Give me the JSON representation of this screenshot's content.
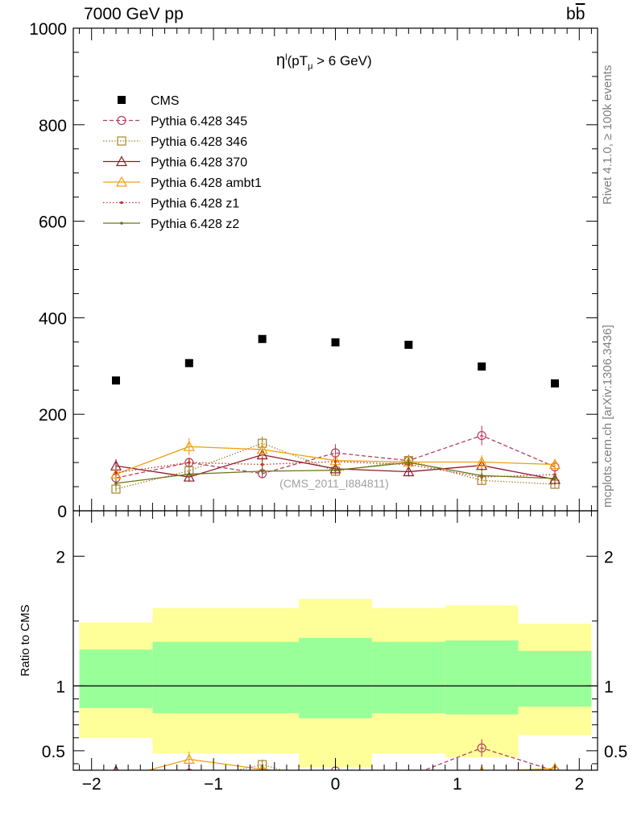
{
  "header": {
    "energy_label": "7000 GeV pp",
    "process_base": "b",
    "process_bar": "b"
  },
  "side_labels": {
    "rivet": "Rivet 4.1.0, ≥ 100k events",
    "source": "mcplots.cern.ch [arXiv:1306.3436]"
  },
  "plot_title": {
    "eta": "η",
    "sup": "l",
    "open": "(pT",
    "sub": "μ",
    "rest": " >  6 GeV)"
  },
  "watermark": "(CMS_2011_I884811)",
  "chart_data": {
    "type": "scatter",
    "xlim": [
      -2.15,
      2.15
    ],
    "xticks": [
      -2,
      -1,
      0,
      1,
      2
    ],
    "xtick_labels": [
      "−2",
      "−1",
      "0",
      "1",
      "2"
    ],
    "main": {
      "ylim": [
        0,
        1000
      ],
      "yticks": [
        0,
        200,
        400,
        600,
        800,
        1000
      ],
      "ytick_labels": [
        "0",
        "200",
        "400",
        "600",
        "800",
        "1000"
      ]
    },
    "ratio": {
      "ylabel": "Ratio to CMS",
      "ylim": [
        0.35,
        2.35
      ],
      "yticks": [
        0.5,
        1,
        2
      ],
      "ytick_labels": [
        "0.5",
        "1",
        "2"
      ]
    },
    "bins": [
      {
        "lo": -2.1,
        "hi": -1.5,
        "inner": [
          0.83,
          1.28
        ],
        "outer": [
          0.6,
          1.49
        ]
      },
      {
        "lo": -1.5,
        "hi": -0.3,
        "inner": [
          0.79,
          1.34
        ],
        "outer": [
          0.48,
          1.6
        ]
      },
      {
        "lo": -0.3,
        "hi": 0.3,
        "inner": [
          0.75,
          1.37
        ],
        "outer": [
          0.37,
          1.67
        ]
      },
      {
        "lo": 0.3,
        "hi": 0.9,
        "inner": [
          0.79,
          1.34
        ],
        "outer": [
          0.48,
          1.6
        ]
      },
      {
        "lo": 0.9,
        "hi": 1.5,
        "inner": [
          0.78,
          1.35
        ],
        "outer": [
          0.45,
          1.62
        ]
      },
      {
        "lo": 1.5,
        "hi": 2.1,
        "inner": [
          0.84,
          1.27
        ],
        "outer": [
          0.62,
          1.48
        ]
      }
    ],
    "cms": {
      "name": "CMS",
      "x": [
        -1.8,
        -1.2,
        -0.6,
        0.0,
        0.6,
        1.2,
        1.8
      ],
      "y": [
        270,
        306,
        356,
        349,
        344,
        299,
        264
      ]
    },
    "series": [
      {
        "name": "Pythia 6.428 345",
        "color": "#b5405e",
        "dash": "5,3",
        "marker": "circle",
        "x": [
          -1.8,
          -1.2,
          -0.6,
          0.0,
          0.6,
          1.2,
          1.8
        ],
        "y": [
          68,
          100,
          77,
          120,
          104,
          156,
          91
        ],
        "err": [
          8,
          10,
          10,
          18,
          12,
          20,
          10
        ]
      },
      {
        "name": "Pythia 6.428 346",
        "color": "#a3852e",
        "dash": "1.5,2",
        "marker": "square",
        "x": [
          -1.8,
          -1.2,
          -0.6,
          0.0,
          0.6,
          1.2,
          1.8
        ],
        "y": [
          45,
          83,
          140,
          82,
          104,
          63,
          55
        ],
        "err": [
          6,
          8,
          14,
          10,
          12,
          8,
          8
        ]
      },
      {
        "name": "Pythia 6.428 370",
        "color": "#8c1c28",
        "dash": "",
        "marker": "triangle",
        "x": [
          -1.8,
          -1.2,
          -0.6,
          0.0,
          0.6,
          1.2,
          1.8
        ],
        "y": [
          93,
          70,
          116,
          87,
          81,
          94,
          65
        ],
        "err": [
          14,
          10,
          12,
          10,
          10,
          12,
          10
        ]
      },
      {
        "name": "Pythia 6.428 ambt1",
        "color": "#f0a010",
        "dash": "",
        "marker": "triangle",
        "x": [
          -1.8,
          -1.2,
          -0.6,
          0.0,
          0.6,
          1.2,
          1.8
        ],
        "y": [
          76,
          133,
          127,
          104,
          101,
          101,
          96
        ],
        "err": [
          10,
          18,
          16,
          12,
          12,
          14,
          12
        ]
      },
      {
        "name": "Pythia 6.428 z1",
        "color": "#cc3320",
        "dash": "1.5,2.5",
        "marker": "dot",
        "x": [
          -1.8,
          -1.2,
          -0.6,
          0.0,
          0.6,
          1.2,
          1.8
        ],
        "y": [
          79,
          100,
          96,
          102,
          96,
          70,
          75
        ],
        "err": [
          8,
          10,
          10,
          12,
          10,
          8,
          8
        ]
      },
      {
        "name": "Pythia 6.428 z2",
        "color": "#6b7417",
        "dash": "",
        "marker": "dot",
        "x": [
          -1.8,
          -1.2,
          -0.6,
          0.0,
          0.6,
          1.2,
          1.8
        ],
        "y": [
          57,
          76,
          82,
          84,
          100,
          73,
          67
        ],
        "err": [
          6,
          8,
          8,
          8,
          10,
          8,
          8
        ]
      }
    ]
  }
}
